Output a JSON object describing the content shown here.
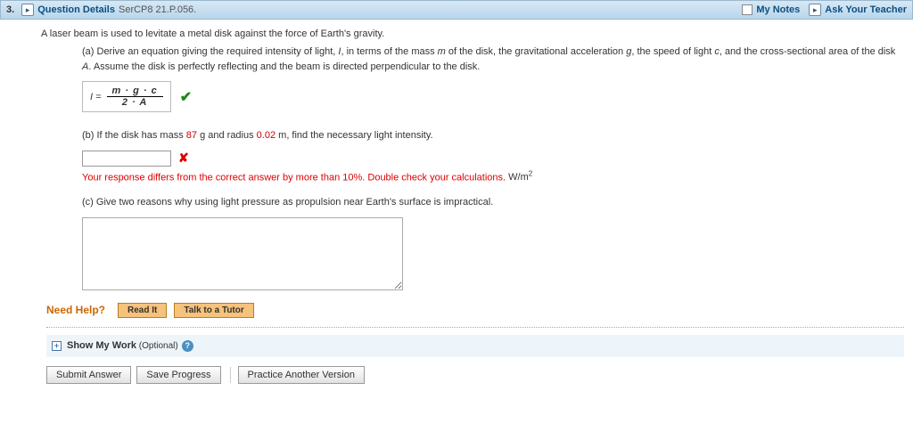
{
  "colors": {
    "header_gradient_top": "#d6e8f5",
    "header_gradient_bottom": "#b9d6ec",
    "link_blue": "#0b4f82",
    "error_red": "#d00",
    "value_red": "#c00",
    "help_orange": "#cc6600",
    "help_btn_bg": "#f7c27a",
    "work_row_bg": "#eef5fa"
  },
  "header": {
    "question_number": "3.",
    "details_label": "Question Details",
    "code": "SerCP8 21.P.056.",
    "my_notes": "My Notes",
    "ask_teacher": "Ask Your Teacher"
  },
  "question": {
    "intro": "A laser beam is used to levitate a metal disk against the force of Earth's gravity.",
    "part_a": {
      "prefix": "(a) Derive an equation giving the required intensity of light, ",
      "var_I": "I",
      "mid1": ", in terms of the mass ",
      "var_m": "m",
      "mid2": " of the disk, the gravitational acceleration ",
      "var_g": "g",
      "mid3": ", the speed of light ",
      "var_c": "c",
      "mid4": ", and the cross-sectional area of the disk ",
      "var_A": "A",
      "suffix": ". Assume the disk is perfectly reflecting and the beam is directed perpendicular to the disk.",
      "equation": {
        "lhs": "I =",
        "numerator": "m · g · c",
        "denominator": "2 · A"
      }
    },
    "part_b": {
      "prefix": "(b) If the disk has mass ",
      "mass_value": "87",
      "mass_unit": " g and radius ",
      "radius_value": "0.02",
      "radius_unit": " m, find the necessary light intensity.",
      "answer_value": "",
      "feedback": "Your response differs from the correct answer by more than 10%. Double check your calculations.",
      "unit_html": "W/m",
      "unit_sup": "2"
    },
    "part_c": {
      "text": "(c) Give two reasons why using light pressure as propulsion near Earth's surface is impractical.",
      "answer_value": ""
    }
  },
  "help": {
    "label": "Need Help?",
    "read_it": "Read It",
    "talk_tutor": "Talk to a Tutor"
  },
  "show_work": {
    "label": "Show My Work",
    "optional": " (Optional)"
  },
  "buttons": {
    "submit": "Submit Answer",
    "save": "Save Progress",
    "practice": "Practice Another Version"
  }
}
